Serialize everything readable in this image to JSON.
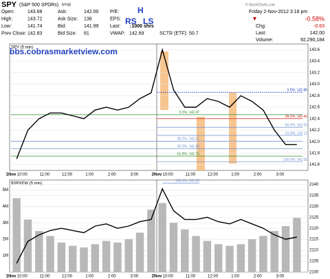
{
  "header": {
    "symbol": "SPY",
    "name": "(S&P 500 SPDRs)",
    "exchange": "NYSE",
    "date": "Friday 2-Nov-2012 3:18 pm",
    "source": "© StockCharts.com",
    "quote": [
      {
        "label": "Open:",
        "value": "143.68"
      },
      {
        "label": "High:",
        "value": "143.72"
      },
      {
        "label": "Low:",
        "value": "141.74"
      },
      {
        "label": "Prev Close:",
        "value": "142.83"
      },
      {
        "label": "Ask:",
        "value": "142.00"
      },
      {
        "label": "Ask Size:",
        "value": "138"
      },
      {
        "label": "Bid:",
        "value": "141.99"
      },
      {
        "label": "Bid Size:",
        "value": "81"
      },
      {
        "label": "P/E:"
      },
      {
        "label": "EPS:"
      },
      {
        "label": "Last:",
        "value": "↓1000 shrs"
      },
      {
        "label": "VWAP:",
        "value": "142.69"
      },
      {
        "label": "SCTR (ETF):",
        "value": "50.7"
      }
    ],
    "change_pct": "-0.58%",
    "summary": [
      {
        "label": "Chg:",
        "value": "-0.83"
      },
      {
        "label": "Last:",
        "value": "142.00"
      },
      {
        "label": "Volume:",
        "value": "92,290,184"
      }
    ],
    "notes": [
      "H",
      "RS",
      "LS",
      "bbs.cobrasmarketview.com"
    ]
  },
  "chart_data": [
    {
      "type": "line",
      "title": "SPY (5 min)",
      "categories": [
        "1Nov",
        "10:00",
        null,
        "11:00",
        null,
        "12:00",
        null,
        "1:00",
        null,
        "2:00",
        null,
        "3:00",
        null,
        "2Nov",
        "10:00",
        null,
        "11:00",
        null,
        "12:00",
        null,
        "1:00",
        null,
        "2:00",
        null,
        "3:00",
        null
      ],
      "series": [
        {
          "color": "#000000",
          "values": [
            141.7,
            142.2,
            142.4,
            142.5,
            142.5,
            142.45,
            142.4,
            142.55,
            142.6,
            142.55,
            142.6,
            142.75,
            142.85,
            143.6,
            142.9,
            142.6,
            142.6,
            142.75,
            142.7,
            142.6,
            142.8,
            142.7,
            142.55,
            142.2,
            141.95,
            141.95
          ]
        }
      ],
      "ylim": [
        141.5,
        143.7
      ],
      "yticks": [
        141.6,
        141.8,
        {
          "value": 142,
          "label": "142.0"
        },
        142.2,
        142.4,
        142.6,
        142.8,
        {
          "value": 143,
          "label": "143.0"
        },
        143.2,
        143.4,
        143.6
      ],
      "retracements": [
        [
          {
            "value": 142.47,
            "label": "0.0%: 142.47",
            "color": "#2e8b2e"
          },
          {
            "value": 142.01,
            "label": "38.2%: 142.01",
            "color": "#6a8fd0"
          },
          {
            "value": 141.88,
            "label": "50.0%: 141.88",
            "color": "#6a8fd0"
          },
          {
            "value": 141.75,
            "label": "61.8%: 141.75",
            "color": "#2e8b2e"
          },
          {
            "value": 141.28,
            "label": "100.0%: 141.28",
            "color": "#6a8fd0"
          }
        ],
        [
          {
            "value": 142.86,
            "label": "0.0%: 142.86",
            "color": "#1f3fbf"
          },
          {
            "value": 142.4,
            "label": "38.2%: 142.40",
            "color": "#cc2222"
          },
          {
            "value": 142.25,
            "label": "50.0%: 142.25",
            "color": "#6a8fd0"
          },
          {
            "value": 142.11,
            "label": "61.8%: 142.11",
            "color": "#6a8fd0"
          },
          {
            "value": 141.65,
            "label": "100.0%: 141.65",
            "color": "#6a8fd0"
          }
        ]
      ],
      "grid": true
    },
    {
      "type": "line",
      "title": "$SPXEW (5 min)",
      "categories": [
        "1Nov",
        "10:00",
        null,
        "11:00",
        null,
        "12:00",
        null,
        "1:00",
        null,
        "2:00",
        null,
        "3:00",
        null,
        "2Nov",
        "10:00",
        null,
        "11:00",
        null,
        "12:00",
        null,
        "1:00",
        null,
        "2:00",
        null,
        "3:00",
        null
      ],
      "series": [
        {
          "type": "bar",
          "axis": "y",
          "color": "#b8b8b8",
          "values": [
            4500000,
            3200000,
            2500000,
            2200000,
            1800000,
            1600000,
            1500000,
            1700000,
            1900000,
            1800000,
            2000000,
            2400000,
            3800000,
            4200000,
            3000000,
            2600000,
            2200000,
            1900000,
            1700000,
            1600000,
            1700000,
            2000000,
            2200000,
            2500000,
            2800000,
            3300000
          ]
        },
        {
          "axis": "y2",
          "color": "#000000",
          "values": [
            2104,
            2114,
            2117,
            2119,
            2120,
            2119,
            2118,
            2121,
            2122,
            2120,
            2121,
            2123,
            2124,
            2138,
            2128,
            2124,
            2124,
            2125,
            2123,
            2122,
            2124,
            2122,
            2120,
            2117,
            2115,
            2116
          ]
        }
      ],
      "ylim": [
        0,
        5600000
      ],
      "yticks": [
        {
          "value": 1000000,
          "label": "1M"
        },
        {
          "value": 2000000,
          "label": "2M"
        },
        {
          "value": 3000000,
          "label": "3M"
        },
        {
          "value": 4000000,
          "label": "4M"
        },
        {
          "value": 5000000,
          "label": "5M"
        }
      ],
      "y2lim": [
        2100,
        2142
      ],
      "y2ticks": [
        2100,
        2105,
        2110,
        2115,
        2120,
        2125,
        2130,
        2135,
        2140
      ],
      "grid": true
    }
  ]
}
